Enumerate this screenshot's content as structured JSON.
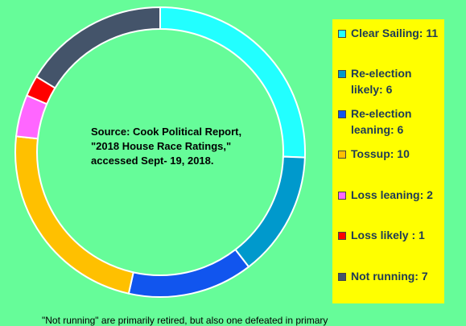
{
  "chart_data": {
    "type": "pie",
    "style": "donut",
    "categories": [
      "Clear Sailing",
      "Re-election likely",
      "Re-election leaning",
      "Tossup",
      "Loss leaning",
      "Loss likely",
      "Not running"
    ],
    "values": [
      11,
      6,
      6,
      10,
      2,
      1,
      7
    ],
    "colors": [
      "#22ffff",
      "#0099cc",
      "#1155ee",
      "#ffc000",
      "#ff66ff",
      "#ff0000",
      "#44546a"
    ],
    "legend": [
      {
        "label": "Clear Sailing: 11",
        "color": "#22ffff"
      },
      {
        "label": "Re-election likely: 6",
        "color": "#0099cc"
      },
      {
        "label": "Re-election leaning: 6",
        "color": "#1155ee"
      },
      {
        "label": "Tossup: 10",
        "color": "#ffc000"
      },
      {
        "label": "Loss leaning: 2",
        "color": "#ff66ff"
      },
      {
        "label": "Loss likely : 1",
        "color": "#ff0000"
      },
      {
        "label": "Not running: 7",
        "color": "#44546a"
      }
    ],
    "legend_position": "right",
    "annotation": "Source: Cook Political Report, \"2018 House Race Ratings,\" accessed Sept- 19, 2018.",
    "footnote": "\"Not running\" are primarily retired, but also one defeated in primary"
  }
}
